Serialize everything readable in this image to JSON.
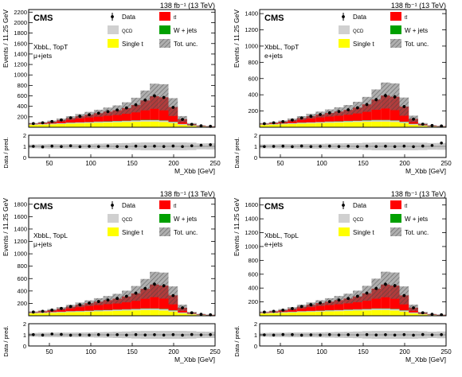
{
  "chart_data": [
    {
      "type": "bar",
      "stacked": true,
      "panel": "top-left",
      "header_right": "138 fb⁻¹ (13 TeV)",
      "experiment": "CMS",
      "category_line1": "XbbL, TopT",
      "category_line2": "μ+jets",
      "ylabel": "Events / 11.25 GeV",
      "xlabel": "M_Xbb [GeV]",
      "ratio_ylabel": "Data / pred.",
      "xlim": [
        25,
        250
      ],
      "ylim": [
        0,
        2250
      ],
      "yticks": [
        200,
        400,
        600,
        800,
        1000,
        1200,
        1400,
        1600,
        1800,
        2000,
        2200
      ],
      "xticks": [
        50,
        100,
        150,
        200,
        250
      ],
      "ratio_ylim": [
        0,
        2
      ],
      "ratio_yticks": [
        0,
        1,
        2
      ],
      "bin_edges": [
        25,
        36.25,
        47.5,
        58.75,
        70,
        81.25,
        92.5,
        103.75,
        115,
        126.25,
        137.5,
        148.75,
        160,
        171.25,
        182.5,
        193.75,
        205,
        216.25,
        227.5,
        238.75,
        250
      ],
      "series": [
        {
          "name": "Single t",
          "color": "#ffff00",
          "values": [
            45,
            50,
            55,
            62,
            70,
            75,
            80,
            85,
            90,
            95,
            100,
            105,
            110,
            110,
            100,
            80,
            45,
            25,
            12,
            8
          ]
        },
        {
          "name": "QCD",
          "color": "#d0d0d0",
          "values": [
            10,
            10,
            12,
            12,
            15,
            15,
            15,
            18,
            18,
            20,
            20,
            22,
            25,
            25,
            25,
            20,
            15,
            10,
            6,
            4
          ]
        },
        {
          "name": "W + jets",
          "color": "#00a000",
          "values": [
            3,
            3,
            4,
            4,
            5,
            5,
            5,
            6,
            6,
            6,
            7,
            7,
            8,
            8,
            8,
            6,
            4,
            3,
            2,
            1
          ]
        },
        {
          "name": "tt̄",
          "color": "#ff0000",
          "values": [
            12,
            22,
            35,
            60,
            85,
            115,
            140,
            160,
            185,
            205,
            240,
            290,
            370,
            450,
            440,
            280,
            90,
            22,
            10,
            5
          ]
        }
      ],
      "total_uncertainty": [
        12,
        16,
        22,
        28,
        36,
        44,
        54,
        66,
        78,
        92,
        110,
        140,
        190,
        240,
        250,
        170,
        60,
        20,
        8,
        5
      ],
      "data": [
        70,
        85,
        110,
        140,
        180,
        210,
        240,
        270,
        300,
        330,
        370,
        430,
        520,
        600,
        570,
        380,
        150,
        55,
        28,
        18
      ],
      "ratio": [
        1.0,
        0.95,
        1.02,
        0.98,
        1.05,
        0.97,
        1.0,
        0.98,
        1.03,
        0.99,
        0.97,
        1.02,
        0.98,
        1.02,
        0.99,
        1.03,
        0.98,
        1.05,
        1.1,
        1.15
      ],
      "legend": {
        "placement": "top-right",
        "entries": [
          "Data",
          "tt̄",
          "QCD",
          "W + jets",
          "Single t",
          "Tot. unc."
        ]
      }
    },
    {
      "type": "bar",
      "stacked": true,
      "panel": "top-right",
      "header_right": "138 fb⁻¹ (13 TeV)",
      "experiment": "CMS",
      "category_line1": "XbbL, TopT",
      "category_line2": "e+jets",
      "ylabel": "Events / 11.25 GeV",
      "xlabel": "M_Xbb [GeV]",
      "ratio_ylabel": "Data / pred.",
      "xlim": [
        25,
        250
      ],
      "ylim": [
        0,
        1450
      ],
      "yticks": [
        200,
        400,
        600,
        800,
        1000,
        1200,
        1400
      ],
      "xticks": [
        50,
        100,
        150,
        200,
        250
      ],
      "ratio_ylim": [
        0,
        2
      ],
      "ratio_yticks": [
        0,
        1,
        2
      ],
      "bin_edges": [
        25,
        36.25,
        47.5,
        58.75,
        70,
        81.25,
        92.5,
        103.75,
        115,
        126.25,
        137.5,
        148.75,
        160,
        171.25,
        182.5,
        193.75,
        205,
        216.25,
        227.5,
        238.75,
        250
      ],
      "series": [
        {
          "name": "Single t",
          "color": "#ffff00",
          "values": [
            28,
            32,
            36,
            40,
            45,
            48,
            52,
            55,
            58,
            62,
            65,
            68,
            70,
            70,
            65,
            52,
            30,
            16,
            8,
            5
          ]
        },
        {
          "name": "QCD",
          "color": "#d0d0d0",
          "values": [
            6,
            6,
            8,
            8,
            10,
            10,
            10,
            12,
            12,
            13,
            13,
            14,
            16,
            16,
            16,
            13,
            10,
            6,
            4,
            3
          ]
        },
        {
          "name": "W + jets",
          "color": "#00a000",
          "values": [
            2,
            2,
            3,
            3,
            3,
            3,
            3,
            4,
            4,
            4,
            4,
            5,
            5,
            5,
            5,
            4,
            3,
            2,
            1,
            1
          ]
        },
        {
          "name": "tt̄",
          "color": "#ff0000",
          "values": [
            8,
            14,
            22,
            38,
            55,
            75,
            92,
            105,
            120,
            135,
            160,
            195,
            250,
            300,
            290,
            185,
            60,
            15,
            7,
            4
          ]
        }
      ],
      "total_uncertainty": [
        8,
        10,
        14,
        18,
        24,
        30,
        36,
        44,
        52,
        60,
        72,
        92,
        125,
        160,
        165,
        112,
        40,
        13,
        6,
        4
      ],
      "data": [
        44,
        55,
        70,
        90,
        115,
        135,
        157,
        178,
        195,
        215,
        240,
        280,
        340,
        390,
        375,
        255,
        100,
        38,
        22,
        16
      ],
      "ratio": [
        0.98,
        1.0,
        1.02,
        0.97,
        1.03,
        0.98,
        1.0,
        1.02,
        0.99,
        1.01,
        0.98,
        1.02,
        0.99,
        1.01,
        0.98,
        1.02,
        0.97,
        1.03,
        1.08,
        1.3
      ],
      "legend": {
        "placement": "top-right",
        "entries": [
          "Data",
          "tt̄",
          "QCD",
          "W + jets",
          "Single t",
          "Tot. unc."
        ]
      }
    },
    {
      "type": "bar",
      "stacked": true,
      "panel": "bottom-left",
      "header_right": "138 fb⁻¹ (13 TeV)",
      "experiment": "CMS",
      "category_line1": "XbbL, TopL",
      "category_line2": "μ+jets",
      "ylabel": "Events / 11.25 GeV",
      "xlabel": "M_Xbb [GeV]",
      "ratio_ylabel": "Data / pred.",
      "xlim": [
        25,
        250
      ],
      "ylim": [
        0,
        1900
      ],
      "yticks": [
        200,
        400,
        600,
        800,
        1000,
        1200,
        1400,
        1600,
        1800
      ],
      "xticks": [
        50,
        100,
        150,
        200,
        250
      ],
      "ratio_ylim": [
        0,
        2
      ],
      "ratio_yticks": [
        0,
        1,
        2
      ],
      "bin_edges": [
        25,
        36.25,
        47.5,
        58.75,
        70,
        81.25,
        92.5,
        103.75,
        115,
        126.25,
        137.5,
        148.75,
        160,
        171.25,
        182.5,
        193.75,
        205,
        216.25,
        227.5,
        238.75,
        250
      ],
      "series": [
        {
          "name": "Single t",
          "color": "#ffff00",
          "values": [
            38,
            42,
            47,
            52,
            58,
            62,
            67,
            71,
            75,
            80,
            84,
            88,
            92,
            92,
            85,
            68,
            38,
            20,
            10,
            6
          ]
        },
        {
          "name": "QCD",
          "color": "#d0d0d0",
          "values": [
            8,
            8,
            10,
            10,
            12,
            12,
            12,
            15,
            15,
            16,
            16,
            18,
            20,
            20,
            20,
            16,
            12,
            8,
            5,
            3
          ]
        },
        {
          "name": "W + jets",
          "color": "#00a000",
          "values": [
            3,
            3,
            3,
            3,
            4,
            4,
            4,
            5,
            5,
            5,
            6,
            6,
            7,
            7,
            7,
            5,
            3,
            2,
            1,
            1
          ]
        },
        {
          "name": "tt̄",
          "color": "#ff0000",
          "values": [
            10,
            18,
            30,
            50,
            72,
            98,
            120,
            137,
            158,
            175,
            205,
            248,
            315,
            385,
            375,
            240,
            76,
            18,
            8,
            4
          ]
        }
      ],
      "total_uncertainty": [
        10,
        14,
        18,
        24,
        30,
        38,
        46,
        56,
        66,
        78,
        94,
        120,
        160,
        205,
        210,
        145,
        50,
        16,
        7,
        4
      ],
      "data": [
        60,
        72,
        92,
        118,
        150,
        178,
        205,
        230,
        255,
        280,
        315,
        365,
        440,
        510,
        485,
        325,
        128,
        48,
        24,
        15
      ],
      "ratio": [
        1.02,
        0.98,
        1.08,
        1.04,
        0.97,
        1.0,
        0.98,
        1.02,
        0.99,
        1.01,
        0.98,
        1.02,
        0.99,
        1.01,
        0.98,
        1.02,
        0.97,
        1.03,
        1.0,
        1.02
      ],
      "legend": {
        "placement": "top-right",
        "entries": [
          "Data",
          "tt̄",
          "QCD",
          "W + jets",
          "Single t",
          "Tot. unc."
        ]
      }
    },
    {
      "type": "bar",
      "stacked": true,
      "panel": "bottom-right",
      "header_right": "138 fb⁻¹ (13 TeV)",
      "experiment": "CMS",
      "category_line1": "XbbL, TopL",
      "category_line2": "e+jets",
      "ylabel": "Events / 11.25 GeV",
      "xlabel": "M_Xbb [GeV]",
      "ratio_ylabel": "Data / pred.",
      "xlim": [
        25,
        250
      ],
      "ylim": [
        0,
        1700
      ],
      "yticks": [
        200,
        400,
        600,
        800,
        1000,
        1200,
        1400,
        1600
      ],
      "xticks": [
        50,
        100,
        150,
        200,
        250
      ],
      "ratio_ylim": [
        0,
        2
      ],
      "ratio_yticks": [
        0,
        1,
        2
      ],
      "bin_edges": [
        25,
        36.25,
        47.5,
        58.75,
        70,
        81.25,
        92.5,
        103.75,
        115,
        126.25,
        137.5,
        148.75,
        160,
        171.25,
        182.5,
        193.75,
        205,
        216.25,
        227.5,
        238.75,
        250
      ],
      "series": [
        {
          "name": "Single t",
          "color": "#ffff00",
          "values": [
            33,
            37,
            42,
            46,
            52,
            56,
            60,
            64,
            67,
            72,
            75,
            78,
            82,
            82,
            76,
            60,
            34,
            18,
            9,
            5
          ]
        },
        {
          "name": "QCD",
          "color": "#d0d0d0",
          "values": [
            7,
            7,
            9,
            9,
            11,
            11,
            11,
            13,
            13,
            14,
            14,
            16,
            18,
            18,
            18,
            14,
            11,
            7,
            4,
            3
          ]
        },
        {
          "name": "W + jets",
          "color": "#00a000",
          "values": [
            2,
            2,
            3,
            3,
            3,
            3,
            4,
            4,
            4,
            5,
            5,
            5,
            6,
            6,
            6,
            5,
            3,
            2,
            1,
            1
          ]
        },
        {
          "name": "tt̄",
          "color": "#ff0000",
          "values": [
            9,
            16,
            27,
            45,
            65,
            88,
            108,
            123,
            142,
            158,
            185,
            225,
            285,
            345,
            335,
            215,
            68,
            16,
            7,
            4
          ]
        }
      ],
      "total_uncertainty": [
        9,
        12,
        16,
        22,
        28,
        34,
        42,
        50,
        60,
        70,
        84,
        108,
        145,
        185,
        190,
        130,
        45,
        14,
        6,
        4
      ],
      "data": [
        53,
        64,
        82,
        104,
        134,
        160,
        185,
        205,
        228,
        250,
        282,
        327,
        395,
        455,
        435,
        292,
        115,
        43,
        21,
        14
      ],
      "ratio": [
        1.0,
        0.98,
        1.03,
        1.02,
        0.97,
        1.0,
        0.98,
        1.02,
        0.99,
        1.01,
        0.98,
        1.02,
        0.99,
        1.01,
        0.98,
        1.02,
        0.97,
        1.03,
        1.0,
        1.02
      ],
      "legend": {
        "placement": "top-right",
        "entries": [
          "Data",
          "tt̄",
          "QCD",
          "W + jets",
          "Single t",
          "Tot. unc."
        ]
      }
    }
  ]
}
